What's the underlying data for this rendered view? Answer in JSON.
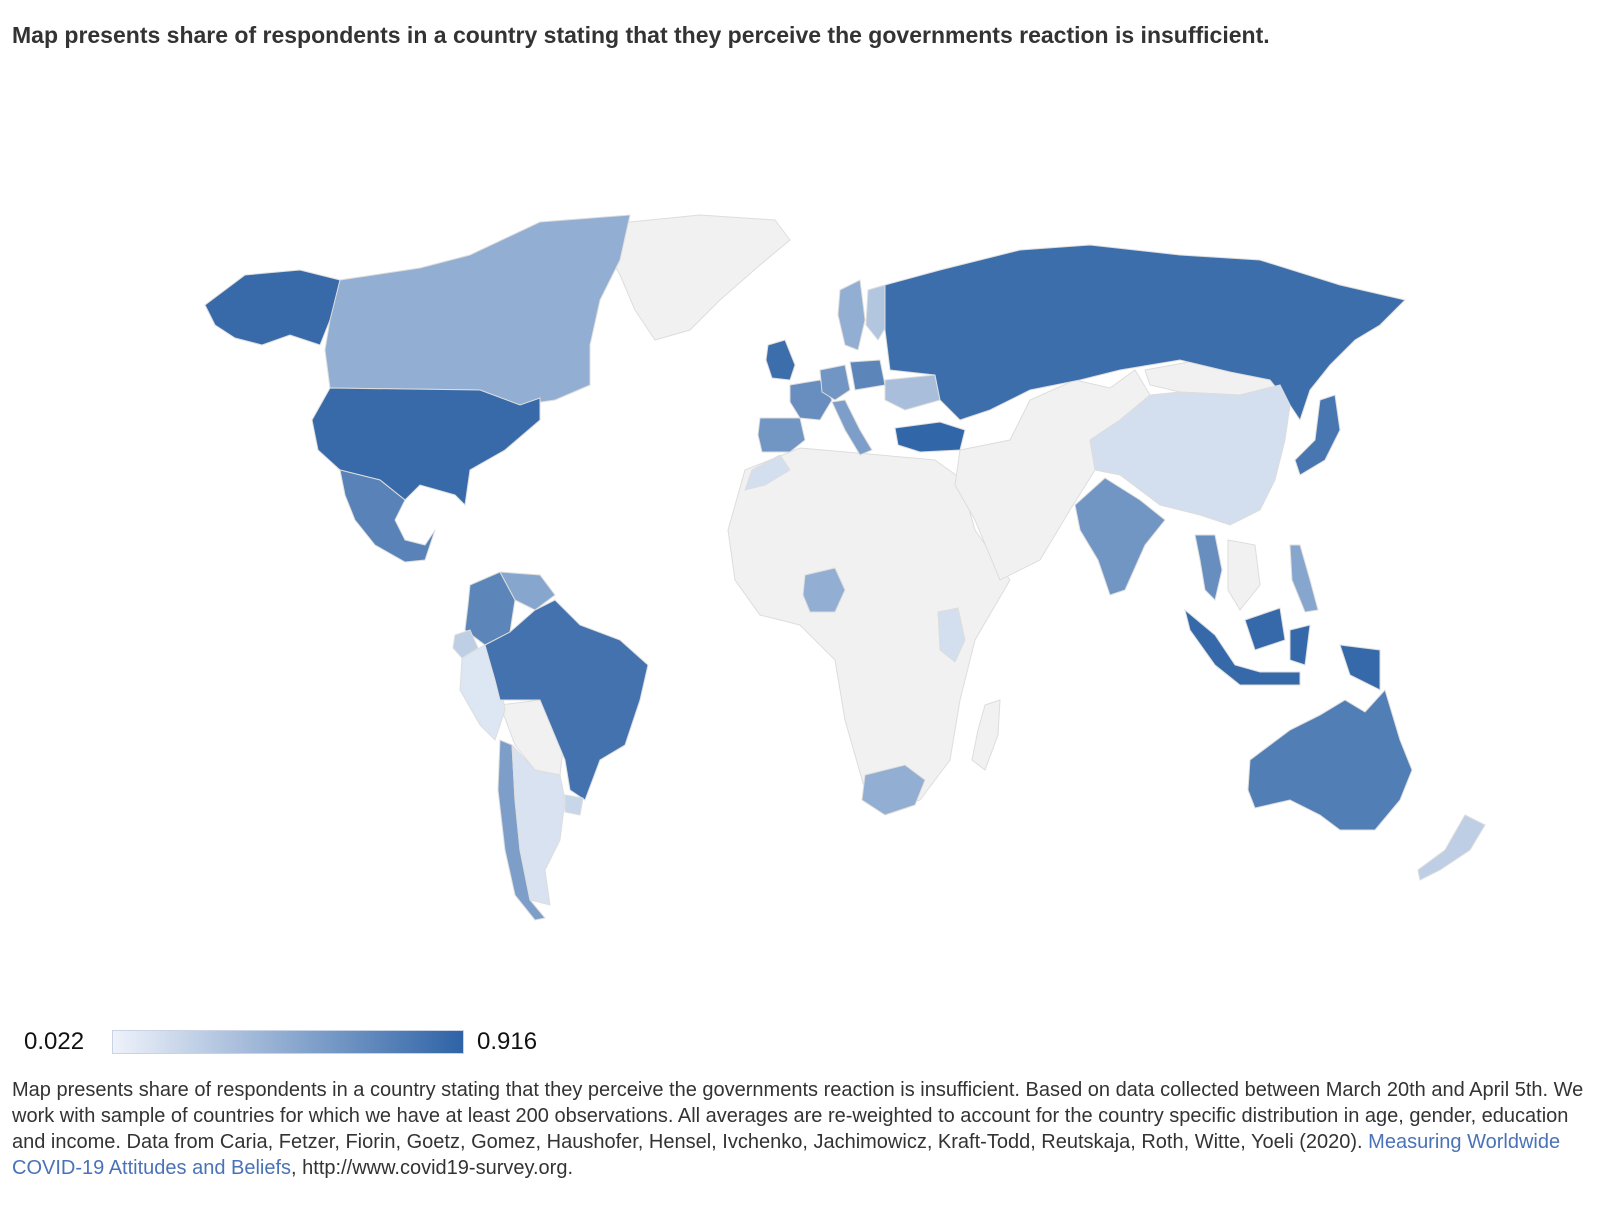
{
  "title": "Map presents share of respondents in a country stating that they perceive the governments reaction is insufficient.",
  "colors": {
    "no_data": "#f1f1f1",
    "scale_min": "#eef2fa",
    "scale_max": "#2e63a6",
    "link": "#4a72b8"
  },
  "legend": {
    "min_label": "0.022",
    "max_label": "0.916",
    "min": 0.022,
    "max": 0.916
  },
  "caption": {
    "text": "Map presents share of respondents in a country stating that they perceive the governments reaction is insufficient. Based on data collected between March 20th and April 5th. We work with sample of countries for which we have at least 200 observations. All averages are re-weighted to account for the country specific distribution in age, gender, education and income. Data from Caria, Fetzer, Fiorin, Goetz, Gomez, Haushofer, Hensel, Ivchenko, Jachimowicz, Kraft-Todd, Reutskaja, Roth, Witte, Yoeli (2020).",
    "link_text": "Measuring Worldwide COVID-19 Attitudes and Beliefs",
    "suffix": ", http://www.covid19-survey.org."
  },
  "regions": [
    {
      "name": "United States",
      "value": 0.87
    },
    {
      "name": "Alaska",
      "value": 0.87
    },
    {
      "name": "Canada",
      "value": 0.45
    },
    {
      "name": "Mexico",
      "value": 0.72
    },
    {
      "name": "Brazil",
      "value": 0.82
    },
    {
      "name": "Colombia",
      "value": 0.7
    },
    {
      "name": "Venezuela",
      "value": 0.5
    },
    {
      "name": "Peru",
      "value": 0.1
    },
    {
      "name": "Ecuador",
      "value": 0.25
    },
    {
      "name": "Chile",
      "value": 0.55
    },
    {
      "name": "Argentina",
      "value": 0.12
    },
    {
      "name": "Uruguay",
      "value": 0.2
    },
    {
      "name": "United Kingdom",
      "value": 0.85
    },
    {
      "name": "Spain",
      "value": 0.6
    },
    {
      "name": "France",
      "value": 0.65
    },
    {
      "name": "Germany",
      "value": 0.6
    },
    {
      "name": "Italy",
      "value": 0.55
    },
    {
      "name": "Poland",
      "value": 0.7
    },
    {
      "name": "Sweden",
      "value": 0.45
    },
    {
      "name": "Finland",
      "value": 0.3
    },
    {
      "name": "Ukraine",
      "value": 0.35
    },
    {
      "name": "Turkey",
      "value": 0.9
    },
    {
      "name": "Russia",
      "value": 0.85
    },
    {
      "name": "China",
      "value": 0.15
    },
    {
      "name": "India",
      "value": 0.6
    },
    {
      "name": "Japan",
      "value": 0.8
    },
    {
      "name": "Indonesia",
      "value": 0.88
    },
    {
      "name": "Thailand",
      "value": 0.65
    },
    {
      "name": "Philippines",
      "value": 0.5
    },
    {
      "name": "Australia",
      "value": 0.75
    },
    {
      "name": "New Zealand",
      "value": 0.25
    },
    {
      "name": "Nigeria",
      "value": 0.45
    },
    {
      "name": "South Africa",
      "value": 0.45
    },
    {
      "name": "Kenya",
      "value": 0.15
    },
    {
      "name": "Morocco",
      "value": 0.15
    },
    {
      "name": "Greenland",
      "value": null
    },
    {
      "name": "Africa (other)",
      "value": null
    },
    {
      "name": "Middle East & Central Asia",
      "value": null
    },
    {
      "name": "Mongolia",
      "value": null
    },
    {
      "name": "Madagascar",
      "value": null
    },
    {
      "name": "Bolivia/Paraguay",
      "value": null
    },
    {
      "name": "Southeast Asia (other)",
      "value": null
    }
  ]
}
